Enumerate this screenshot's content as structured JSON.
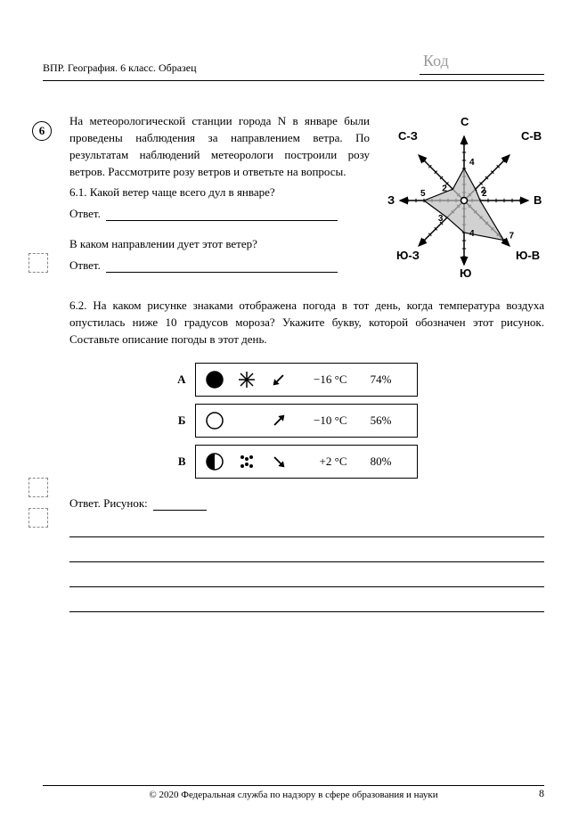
{
  "header": {
    "title": "ВПР. География. 6 класс. Образец",
    "code_placeholder": "Код"
  },
  "question": {
    "number": "6",
    "intro": "На метеорологической станции города N в январе были проведены наблюдения за направлением ветра. По результатам наблюдений метеорологи построили розу ветров. Рассмотрите розу ветров и ответьте на вопросы.",
    "q61_label": "6.1. Какой ветер чаще всего дул в январе?",
    "answer_label": "Ответ.",
    "dir_question": "В каком направлении дует этот ветер?",
    "q62": "6.2. На каком рисунке знаками отображена погода в тот день, когда температура воздуха опустилась ниже 10 градусов мороза? Укажите букву, которой обозначен этот рисунок. Составьте описание погоды в этот день.",
    "answer_pic_label": "Ответ. Рисунок:"
  },
  "wind_rose": {
    "directions": {
      "N": "С",
      "NE": "С-В",
      "E": "В",
      "SE": "Ю-В",
      "S": "Ю",
      "SW": "Ю-З",
      "W": "З",
      "NW": "С-З"
    },
    "values": {
      "N": 4,
      "NE": 2,
      "E": 2,
      "SE": 7,
      "S": 4,
      "SW": 3,
      "W": 5,
      "NW": 2
    },
    "tick_labels": {
      "N": "4",
      "NE": "2",
      "E": "2",
      "SE": "7",
      "S": "4",
      "SW": "3",
      "W": "5",
      "NW": "2"
    },
    "axis_len": 72,
    "unit": 9,
    "colors": {
      "axes": "#000000",
      "fill": "#bdbdbd",
      "stroke": "#000000"
    }
  },
  "weather_rows": {
    "A": {
      "letter": "А",
      "sky": "full",
      "precip": "snow",
      "wind_deg": 225,
      "temp": "−16 °C",
      "humidity": "74%"
    },
    "B": {
      "letter": "Б",
      "sky": "clear",
      "precip": "none",
      "wind_deg": 45,
      "temp": "−10 °C",
      "humidity": "56%"
    },
    "C": {
      "letter": "В",
      "sky": "half",
      "precip": "rain",
      "wind_deg": 135,
      "temp": "+2 °C",
      "humidity": "80%"
    }
  },
  "footer": {
    "copyright": "© 2020 Федеральная служба по надзору в сфере образования и науки",
    "page": "8"
  }
}
